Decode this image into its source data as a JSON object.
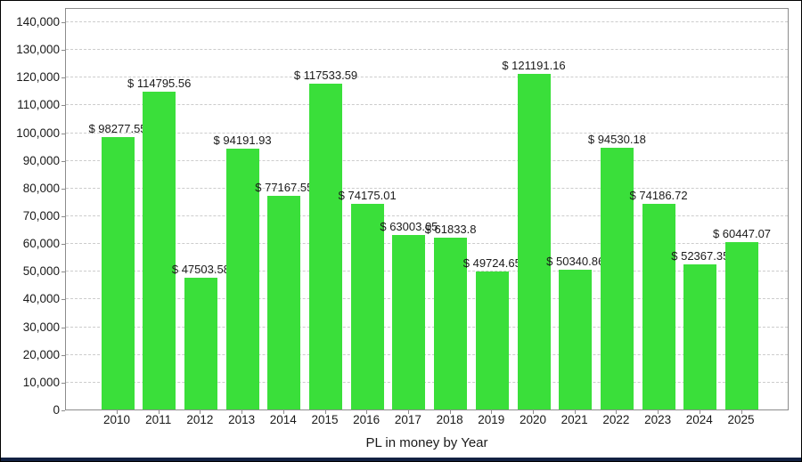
{
  "window": {
    "bottom_strip_color": "#122142"
  },
  "chart_data": {
    "type": "bar",
    "title": "",
    "xlabel": "PL in money by Year",
    "ylabel": "",
    "categories": [
      "2010",
      "2011",
      "2012",
      "2013",
      "2014",
      "2015",
      "2016",
      "2017",
      "2018",
      "2019",
      "2020",
      "2021",
      "2022",
      "2023",
      "2024",
      "2025"
    ],
    "values": [
      98277.55,
      114795.56,
      47503.58,
      94191.93,
      77167.55,
      117533.59,
      74175.01,
      63003.05,
      61833.8,
      49724.65,
      121191.16,
      50340.86,
      94530.18,
      74186.72,
      52367.35,
      60447.07
    ],
    "bar_labels": [
      "$ 98277.55",
      "$ 114795.56",
      "$ 47503.58",
      "$ 94191.93",
      "$ 77167.55",
      "$ 117533.59",
      "$ 74175.01",
      "$ 63003.05",
      "$ 61833.8",
      "$ 49724.65",
      "$ 121191.16",
      "$ 50340.86",
      "$ 94530.18",
      "$ 74186.72",
      "$ 52367.35",
      "$ 60447.07"
    ],
    "ylim": [
      0,
      140000
    ],
    "ytick_step": 10000,
    "ytick_labels": [
      "0",
      "10,000",
      "20,000",
      "30,000",
      "40,000",
      "50,000",
      "60,000",
      "70,000",
      "80,000",
      "90,000",
      "100,000",
      "110,000",
      "120,000",
      "130,000",
      "140,000"
    ],
    "grid": "horizontal-dashed",
    "legend": "none",
    "bar_color": "#3ADF3A",
    "grid_color": "#cccccc",
    "axis_color": "#8c8c8c",
    "text_color": "#1a1a1a"
  }
}
